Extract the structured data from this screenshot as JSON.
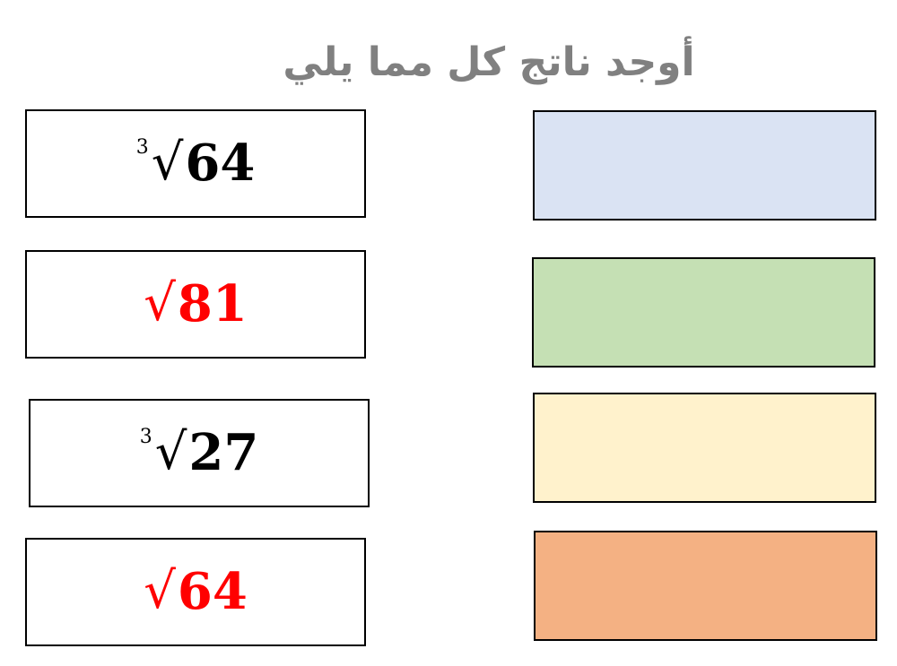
{
  "title": "أوجد ناتج كل مما يلي",
  "expressions": [
    {
      "index": "3",
      "radical": "√",
      "radicand": "64",
      "color": "#000000"
    },
    {
      "index": "",
      "radical": "√",
      "radicand": "81",
      "color": "#ff0000"
    },
    {
      "index": "3",
      "radical": "√",
      "radicand": "27",
      "color": "#000000"
    },
    {
      "index": "",
      "radical": "√",
      "radicand": "64",
      "color": "#ff0000"
    }
  ],
  "answer_boxes": [
    {
      "color": "#dae3f3"
    },
    {
      "color": "#c5e0b4"
    },
    {
      "color": "#fff2cc"
    },
    {
      "color": "#f4b183"
    }
  ]
}
